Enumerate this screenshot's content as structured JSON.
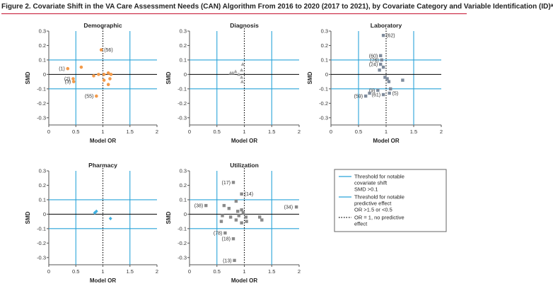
{
  "figure_title": "Figure 2. Covariate Shift in the VA Care Assessment Needs (CAN) Algorithm From 2016 to 2020 (2017 to 2021), by Covariate Category and Variable Identification (ID)ᵃ",
  "colors": {
    "threshold_lines": "#29a3d9",
    "zero_line": "#000000",
    "demographic": "#f39a4a",
    "diagnosis": "#a8a8a8",
    "laboratory": "#7f8b9c",
    "pharmacy": "#3fb0e0",
    "utilization": "#8a8a8a",
    "accent": "#c4122f"
  },
  "legend": {
    "items": [
      {
        "label_lines": [
          "Threshold for notable",
          "covariate shift",
          "SMD >0.1"
        ],
        "style": "solid-blue"
      },
      {
        "label_lines": [
          "Threshold for notable",
          "predictive effect",
          "OR >1.5 or <0.5"
        ],
        "style": "solid-blue"
      },
      {
        "label_lines": [
          "OR = 1, no predictive",
          "effect"
        ],
        "style": "dotted-black"
      }
    ]
  },
  "chart_data": [
    {
      "type": "scatter",
      "title": "Demographic",
      "xlabel": "Model OR",
      "ylabel": "SMD",
      "xlim": [
        0,
        2
      ],
      "ylim": [
        -0.35,
        0.3
      ],
      "xticks": [
        "0",
        "0.5",
        "1",
        "1.5",
        "2"
      ],
      "yticks": [
        "0.3",
        "0.2",
        "0.1",
        "0",
        "-0.1",
        "-0.2",
        "-0.3"
      ],
      "reference_lines": {
        "x_threshold": [
          0.5,
          1.5
        ],
        "y_threshold": [
          0.1,
          -0.1
        ],
        "x_null": 1
      },
      "marker": "circle",
      "color": "#f39a4a",
      "points": [
        {
          "x": 0.97,
          "y": 0.17,
          "label": "(56)"
        },
        {
          "x": 0.35,
          "y": 0.04,
          "label": "(1)"
        },
        {
          "x": 0.6,
          "y": 0.05
        },
        {
          "x": 0.45,
          "y": -0.03,
          "label": "(2)"
        },
        {
          "x": 0.46,
          "y": -0.05,
          "label": "(3)"
        },
        {
          "x": 0.83,
          "y": -0.01
        },
        {
          "x": 0.92,
          "y": 0.0
        },
        {
          "x": 1.02,
          "y": 0.0
        },
        {
          "x": 1.1,
          "y": 0.01
        },
        {
          "x": 1.15,
          "y": 0.0
        },
        {
          "x": 1.13,
          "y": -0.03
        },
        {
          "x": 1.02,
          "y": -0.04
        },
        {
          "x": 1.1,
          "y": -0.07
        },
        {
          "x": 0.88,
          "y": -0.15,
          "label": "(55)"
        }
      ]
    },
    {
      "type": "scatter",
      "title": "Diagnosis",
      "xlabel": "Model OR",
      "ylabel": "SMD",
      "xlim": [
        0,
        2
      ],
      "ylim": [
        -0.35,
        0.3
      ],
      "xticks": [
        "0",
        "0.5",
        "1",
        "1.5",
        "2"
      ],
      "yticks": [
        "0.3",
        "0.2",
        "0.1",
        "0",
        "-0.1",
        "-0.2",
        "-0.3"
      ],
      "reference_lines": {
        "x_threshold": [
          0.5,
          1.5
        ],
        "y_threshold": [
          0.1,
          -0.1
        ],
        "x_null": 1
      },
      "marker": "triangle",
      "color": "#a8a8a8",
      "points": [
        {
          "x": 0.75,
          "y": 0.01
        },
        {
          "x": 0.79,
          "y": 0.01
        },
        {
          "x": 0.84,
          "y": 0.02
        },
        {
          "x": 0.9,
          "y": 0.0
        },
        {
          "x": 0.95,
          "y": 0.03
        },
        {
          "x": 0.97,
          "y": 0.07
        },
        {
          "x": 0.95,
          "y": -0.02
        },
        {
          "x": 0.96,
          "y": -0.05
        }
      ]
    },
    {
      "type": "scatter",
      "title": "Laboratory",
      "xlabel": "Model OR",
      "ylabel": "SMD",
      "xlim": [
        0,
        2
      ],
      "ylim": [
        -0.35,
        0.3
      ],
      "xticks": [
        "0",
        "0.5",
        "1",
        "1.5",
        "2"
      ],
      "yticks": [
        "0.3",
        "0.2",
        "0.1",
        "0",
        "-0.1",
        "-0.2",
        "-0.3"
      ],
      "reference_lines": {
        "x_threshold": [
          0.5,
          1.5
        ],
        "y_threshold": [
          0.1,
          -0.1
        ],
        "x_null": 1
      },
      "marker": "square",
      "color": "#7f8b9c",
      "points": [
        {
          "x": 0.95,
          "y": 0.27,
          "label": "(62)"
        },
        {
          "x": 0.9,
          "y": 0.13,
          "label": "(60)"
        },
        {
          "x": 0.92,
          "y": 0.1,
          "label": "(76)"
        },
        {
          "x": 0.9,
          "y": 0.07,
          "label": "(24)"
        },
        {
          "x": 0.88,
          "y": 0.03
        },
        {
          "x": 0.95,
          "y": 0.05
        },
        {
          "x": 0.98,
          "y": -0.02
        },
        {
          "x": 1.02,
          "y": -0.03
        },
        {
          "x": 1.05,
          "y": -0.05
        },
        {
          "x": 1.3,
          "y": -0.04
        },
        {
          "x": 1.08,
          "y": -0.1
        },
        {
          "x": 0.85,
          "y": -0.11,
          "label": "(9)"
        },
        {
          "x": 0.7,
          "y": -0.13
        },
        {
          "x": 0.63,
          "y": -0.15,
          "label": "(59)"
        },
        {
          "x": 0.95,
          "y": -0.14,
          "label": "(61)"
        },
        {
          "x": 1.06,
          "y": -0.13,
          "label": "(5)"
        }
      ]
    },
    {
      "type": "scatter",
      "title": "Pharmacy",
      "xlabel": "Model OR",
      "ylabel": "SMD",
      "xlim": [
        0,
        2
      ],
      "ylim": [
        -0.35,
        0.3
      ],
      "xticks": [
        "0",
        "0.5",
        "1",
        "1.5",
        "2"
      ],
      "yticks": [
        "0.3",
        "0.2",
        "0.1",
        "0",
        "-0.1",
        "-0.2",
        "-0.3"
      ],
      "reference_lines": {
        "x_threshold": [
          0.5,
          1.5
        ],
        "y_threshold": [
          0.1,
          -0.1
        ],
        "x_null": 1
      },
      "marker": "diamond",
      "color": "#3fb0e0",
      "points": [
        {
          "x": 0.85,
          "y": 0.01
        },
        {
          "x": 0.88,
          "y": 0.02
        },
        {
          "x": 1.14,
          "y": -0.03
        }
      ]
    },
    {
      "type": "scatter",
      "title": "Utilization",
      "xlabel": "Model OR",
      "ylabel": "SMD",
      "xlim": [
        0,
        2
      ],
      "ylim": [
        -0.35,
        0.3
      ],
      "xticks": [
        "0",
        "0.5",
        "1",
        "1.5",
        "2"
      ],
      "yticks": [
        "0.3",
        "0.2",
        "0.1",
        "0",
        "-0.1",
        "-0.2",
        "-0.3"
      ],
      "reference_lines": {
        "x_threshold": [
          0.5,
          1.5
        ],
        "y_threshold": [
          0.1,
          -0.1
        ],
        "x_null": 1
      },
      "marker": "square",
      "color": "#8a8a8a",
      "points": [
        {
          "x": 0.8,
          "y": 0.22,
          "label": "(17)"
        },
        {
          "x": 0.95,
          "y": 0.14,
          "label": "(14)"
        },
        {
          "x": 0.85,
          "y": 0.09
        },
        {
          "x": 0.3,
          "y": 0.06,
          "label": "(38)"
        },
        {
          "x": 0.63,
          "y": 0.06
        },
        {
          "x": 0.72,
          "y": 0.04
        },
        {
          "x": 0.95,
          "y": 0.03
        },
        {
          "x": 0.88,
          "y": 0.02
        },
        {
          "x": 0.98,
          "y": 0.01
        },
        {
          "x": 0.6,
          "y": -0.01
        },
        {
          "x": 0.75,
          "y": -0.02
        },
        {
          "x": 0.9,
          "y": -0.01
        },
        {
          "x": 1.03,
          "y": -0.02
        },
        {
          "x": 1.28,
          "y": -0.02
        },
        {
          "x": 1.32,
          "y": -0.04
        },
        {
          "x": 0.58,
          "y": -0.05
        },
        {
          "x": 0.85,
          "y": -0.04
        },
        {
          "x": 0.95,
          "y": -0.06
        },
        {
          "x": 1.04,
          "y": -0.05
        },
        {
          "x": 1.95,
          "y": 0.05,
          "label": "(34)"
        },
        {
          "x": 0.65,
          "y": -0.13,
          "label": "(78)"
        },
        {
          "x": 0.8,
          "y": -0.17,
          "label": "(18)"
        },
        {
          "x": 0.82,
          "y": -0.32,
          "label": "(13)"
        }
      ]
    }
  ]
}
